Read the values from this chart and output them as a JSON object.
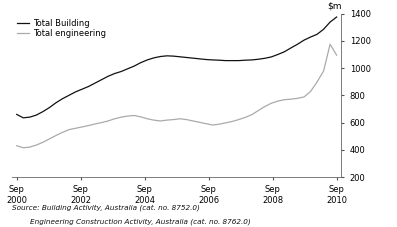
{
  "source_line1": "Source: Building Activity, Australia (cat. no. 8752.0)",
  "source_line2": "        Engineering Construction Activity, Australia (cat. no. 8762.0)",
  "legend": [
    "Total Building",
    "Total engineering"
  ],
  "line_colors": [
    "#111111",
    "#aaaaaa"
  ],
  "ylim": [
    200,
    1400
  ],
  "yticks": [
    200,
    400,
    600,
    800,
    1000,
    1200,
    1400
  ],
  "x_start": 2000.75,
  "x_end": 2010.75,
  "xtick_labels": [
    "Sep\n2000",
    "Sep\n2002",
    "Sep\n2004",
    "Sep\n2006",
    "Sep\n2008",
    "Sep\n2010"
  ],
  "xtick_positions": [
    2000.75,
    2002.75,
    2004.75,
    2006.75,
    2008.75,
    2010.75
  ],
  "total_building": [
    660,
    635,
    640,
    655,
    680,
    710,
    745,
    775,
    800,
    825,
    845,
    865,
    890,
    915,
    940,
    960,
    975,
    995,
    1015,
    1040,
    1060,
    1075,
    1085,
    1090,
    1088,
    1083,
    1078,
    1073,
    1068,
    1063,
    1060,
    1058,
    1055,
    1055,
    1055,
    1058,
    1060,
    1065,
    1072,
    1082,
    1100,
    1120,
    1148,
    1175,
    1205,
    1228,
    1248,
    1285,
    1338,
    1375
  ],
  "total_engineering": [
    430,
    415,
    420,
    435,
    455,
    480,
    505,
    528,
    548,
    558,
    568,
    578,
    590,
    600,
    612,
    628,
    640,
    648,
    652,
    642,
    628,
    618,
    612,
    618,
    622,
    628,
    622,
    612,
    602,
    592,
    582,
    588,
    598,
    608,
    622,
    638,
    658,
    688,
    718,
    742,
    758,
    768,
    772,
    778,
    788,
    828,
    898,
    978,
    1175,
    1095
  ]
}
